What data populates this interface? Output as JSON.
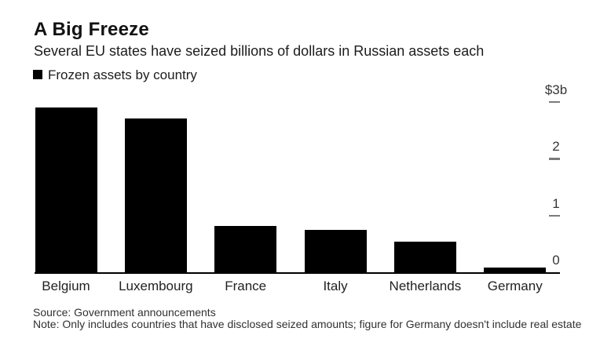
{
  "header": {
    "title": "A Big Freeze",
    "subtitle": "Several EU states have seized billions of dollars in Russian assets each"
  },
  "legend": {
    "label": "Frozen assets by country",
    "swatch_color": "#000000"
  },
  "chart_data": {
    "type": "bar",
    "title": "A Big Freeze",
    "subtitle": "Several EU states have seized billions of dollars in Russian assets each",
    "legend": [
      "Frozen assets by country"
    ],
    "categories": [
      "Belgium",
      "Luxembourg",
      "France",
      "Italy",
      "Netherlands",
      "Germany"
    ],
    "values": [
      2.9,
      2.7,
      0.81,
      0.75,
      0.54,
      0.08
    ],
    "unit": "billions of US dollars",
    "xlabel": "",
    "ylabel": "$b",
    "ylim": [
      0,
      3
    ],
    "yticks": [
      {
        "label": "$3b",
        "value": 3
      },
      {
        "label": "2",
        "value": 2
      },
      {
        "label": "1",
        "value": 1
      },
      {
        "label": "0",
        "value": 0
      }
    ],
    "bar_color": "#000000",
    "grid": false,
    "legend_position": "top-left",
    "axis_label_side": "right"
  },
  "footer": {
    "source": "Source: Government announcements",
    "note": "Note: Only includes countries that have disclosed seized amounts; figure for Germany doesn't include real estate"
  }
}
